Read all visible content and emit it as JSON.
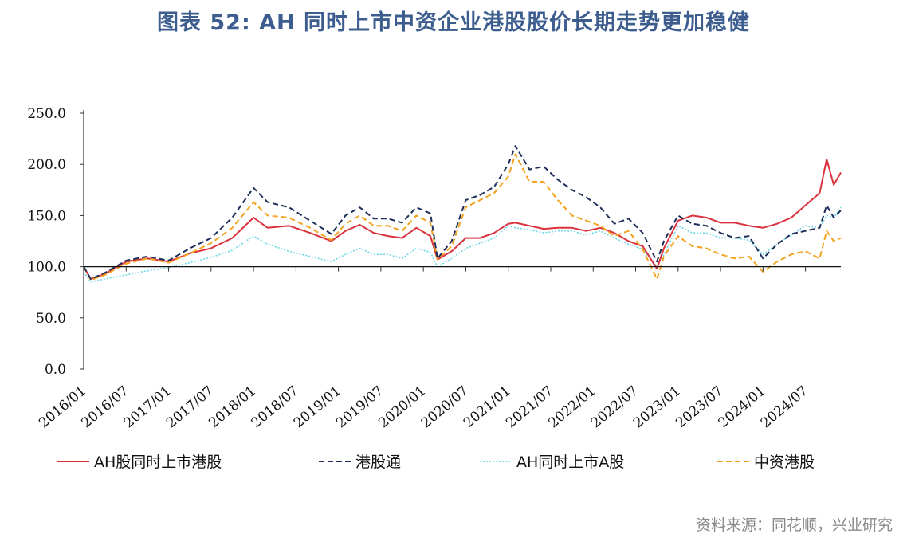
{
  "title": "图表 52: AH 同时上市中资企业港股股价长期走势更加稳健",
  "source": "资料来源：同花顺，兴业研究",
  "colors": {
    "ah_hk": "#d9323c",
    "hk_connect": "#1f2f5a",
    "ah_a": "#6fd6e6",
    "chinese_hk": "#f3a320"
  },
  "chart_data": {
    "type": "line",
    "ylim": [
      0,
      250
    ],
    "yticks": [
      "0.0",
      "50.0",
      "100.0",
      "150.0",
      "200.0",
      "250.0"
    ],
    "baseline": 100,
    "xlim": [
      "2016/01",
      "2024/12"
    ],
    "xticks": [
      "2016/01",
      "2016/07",
      "2017/01",
      "2017/07",
      "2018/01",
      "2018/07",
      "2019/01",
      "2019/07",
      "2020/01",
      "2020/07",
      "2021/01",
      "2021/07",
      "2022/01",
      "2022/07",
      "2023/01",
      "2023/07",
      "2024/01",
      "2024/07"
    ],
    "series": [
      {
        "name": "AH股同时上市港股",
        "color_key": "ah_hk",
        "dash": "solid",
        "x": [
          "2016/01",
          "2016/02",
          "2016/04",
          "2016/07",
          "2016/10",
          "2017/01",
          "2017/04",
          "2017/07",
          "2017/10",
          "2018/01",
          "2018/03",
          "2018/06",
          "2018/09",
          "2018/12",
          "2019/02",
          "2019/04",
          "2019/06",
          "2019/08",
          "2019/10",
          "2019/12",
          "2020/02",
          "2020/03",
          "2020/05",
          "2020/07",
          "2020/09",
          "2020/11",
          "2021/01",
          "2021/02",
          "2021/04",
          "2021/06",
          "2021/08",
          "2021/10",
          "2021/12",
          "2022/02",
          "2022/04",
          "2022/06",
          "2022/08",
          "2022/10",
          "2022/11",
          "2023/01",
          "2023/03",
          "2023/05",
          "2023/07",
          "2023/09",
          "2023/11",
          "2024/01",
          "2024/03",
          "2024/05",
          "2024/07",
          "2024/09",
          "2024/10",
          "2024/11",
          "2024/12"
        ],
        "y": [
          100,
          88,
          93,
          105,
          108,
          105,
          113,
          118,
          128,
          148,
          138,
          140,
          133,
          125,
          135,
          141,
          133,
          130,
          128,
          138,
          130,
          107,
          115,
          128,
          128,
          133,
          142,
          143,
          140,
          137,
          138,
          138,
          135,
          138,
          133,
          125,
          120,
          98,
          118,
          145,
          150,
          148,
          143,
          143,
          140,
          138,
          142,
          148,
          160,
          172,
          205,
          180,
          192
        ]
      },
      {
        "name": "港股通",
        "color_key": "hk_connect",
        "dash": "dashed",
        "x": [
          "2016/01",
          "2016/02",
          "2016/04",
          "2016/07",
          "2016/10",
          "2017/01",
          "2017/04",
          "2017/07",
          "2017/10",
          "2018/01",
          "2018/03",
          "2018/06",
          "2018/09",
          "2018/12",
          "2019/02",
          "2019/04",
          "2019/06",
          "2019/08",
          "2019/10",
          "2019/12",
          "2020/02",
          "2020/03",
          "2020/05",
          "2020/07",
          "2020/09",
          "2020/11",
          "2021/01",
          "2021/02",
          "2021/04",
          "2021/06",
          "2021/08",
          "2021/10",
          "2021/12",
          "2022/02",
          "2022/04",
          "2022/06",
          "2022/08",
          "2022/10",
          "2022/11",
          "2023/01",
          "2023/03",
          "2023/05",
          "2023/07",
          "2023/09",
          "2023/11",
          "2024/01",
          "2024/03",
          "2024/05",
          "2024/07",
          "2024/09",
          "2024/10",
          "2024/11",
          "2024/12"
        ],
        "y": [
          100,
          88,
          94,
          106,
          110,
          106,
          118,
          128,
          148,
          177,
          163,
          158,
          145,
          132,
          150,
          158,
          147,
          147,
          143,
          158,
          152,
          108,
          125,
          165,
          170,
          178,
          200,
          218,
          195,
          198,
          185,
          175,
          168,
          158,
          142,
          147,
          133,
          105,
          125,
          150,
          142,
          140,
          133,
          128,
          130,
          108,
          122,
          132,
          135,
          138,
          160,
          148,
          155
        ]
      },
      {
        "name": "AH同时上市A股",
        "color_key": "ah_a",
        "dash": "dotted",
        "x": [
          "2016/01",
          "2016/02",
          "2016/04",
          "2016/07",
          "2016/10",
          "2017/01",
          "2017/04",
          "2017/07",
          "2017/10",
          "2018/01",
          "2018/03",
          "2018/06",
          "2018/09",
          "2018/12",
          "2019/02",
          "2019/04",
          "2019/06",
          "2019/08",
          "2019/10",
          "2019/12",
          "2020/02",
          "2020/03",
          "2020/05",
          "2020/07",
          "2020/09",
          "2020/11",
          "2021/01",
          "2021/02",
          "2021/04",
          "2021/06",
          "2021/08",
          "2021/10",
          "2021/12",
          "2022/02",
          "2022/04",
          "2022/06",
          "2022/08",
          "2022/10",
          "2022/11",
          "2023/01",
          "2023/03",
          "2023/05",
          "2023/07",
          "2023/09",
          "2023/11",
          "2024/01",
          "2024/03",
          "2024/05",
          "2024/07",
          "2024/09",
          "2024/10",
          "2024/11",
          "2024/12"
        ],
        "y": [
          95,
          85,
          88,
          92,
          96,
          99,
          104,
          109,
          116,
          130,
          122,
          115,
          110,
          105,
          112,
          118,
          112,
          112,
          108,
          118,
          114,
          100,
          108,
          118,
          123,
          128,
          140,
          138,
          136,
          133,
          135,
          135,
          131,
          135,
          128,
          122,
          117,
          100,
          112,
          140,
          133,
          133,
          128,
          128,
          126,
          112,
          122,
          131,
          140,
          138,
          150,
          148,
          158
        ]
      },
      {
        "name": "中资港股",
        "color_key": "chinese_hk",
        "dash": "dashed",
        "x": [
          "2016/01",
          "2016/02",
          "2016/04",
          "2016/07",
          "2016/10",
          "2017/01",
          "2017/04",
          "2017/07",
          "2017/10",
          "2018/01",
          "2018/03",
          "2018/06",
          "2018/09",
          "2018/12",
          "2019/02",
          "2019/04",
          "2019/06",
          "2019/08",
          "2019/10",
          "2019/12",
          "2020/02",
          "2020/03",
          "2020/05",
          "2020/07",
          "2020/09",
          "2020/11",
          "2021/01",
          "2021/02",
          "2021/04",
          "2021/06",
          "2021/08",
          "2021/10",
          "2021/12",
          "2022/02",
          "2022/04",
          "2022/06",
          "2022/08",
          "2022/10",
          "2022/11",
          "2023/01",
          "2023/03",
          "2023/05",
          "2023/07",
          "2023/09",
          "2023/11",
          "2024/01",
          "2024/03",
          "2024/05",
          "2024/07",
          "2024/09",
          "2024/10",
          "2024/11",
          "2024/12"
        ],
        "y": [
          100,
          87,
          92,
          103,
          108,
          104,
          113,
          123,
          138,
          163,
          150,
          148,
          138,
          126,
          142,
          150,
          140,
          140,
          135,
          150,
          143,
          107,
          120,
          158,
          165,
          172,
          188,
          210,
          183,
          183,
          165,
          150,
          145,
          140,
          130,
          135,
          117,
          88,
          110,
          130,
          120,
          118,
          112,
          108,
          110,
          95,
          105,
          112,
          115,
          108,
          135,
          125,
          128
        ]
      }
    ]
  },
  "legend": [
    {
      "label": "AH股同时上市港股",
      "color_key": "ah_hk",
      "dash": "solid"
    },
    {
      "label": "港股通",
      "color_key": "hk_connect",
      "dash": "dashed"
    },
    {
      "label": "AH同时上市A股",
      "color_key": "ah_a",
      "dash": "dotted"
    },
    {
      "label": "中资港股",
      "color_key": "chinese_hk",
      "dash": "dashed"
    }
  ]
}
